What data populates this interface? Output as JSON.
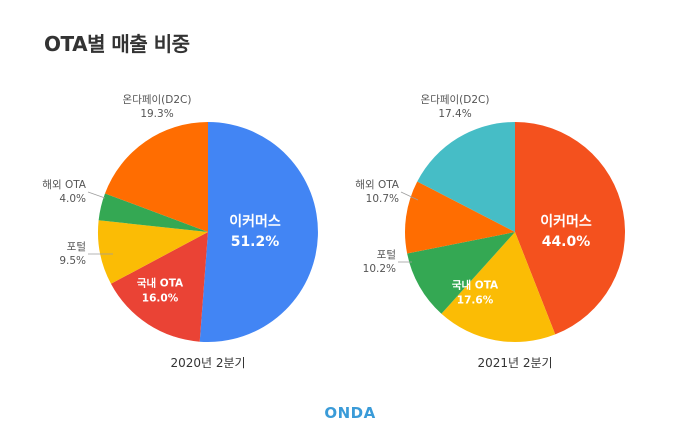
{
  "title": "OTA별 매출 비중",
  "logo": "ONDA",
  "colors": {
    "이커머스_2020": "#4285f4",
    "이커머스_2021": "#f4511e",
    "국내 OTA": "#ea4335",
    "국내 OTA_2021": "#fbbc05",
    "포털": "#fbbc05",
    "포털_2021": "#34a853",
    "해외 OTA": "#34a853",
    "해외 OTA_2021": "#ff6d01",
    "온다페이(D2C)": "#ff6d01",
    "온다페이(D2C)_2021": "#46bdc6"
  },
  "chart_data": [
    {
      "type": "pie",
      "caption": "2020년 2분기",
      "slices": [
        {
          "label": "이커머스",
          "value": 51.2,
          "value_text": "51.2%",
          "color": "#4285f4",
          "label_pos": "inside-big"
        },
        {
          "label": "국내 OTA",
          "value": 16.0,
          "value_text": "16.0%",
          "color": "#ea4335",
          "label_pos": "inside-small"
        },
        {
          "label": "포털",
          "value": 9.5,
          "value_text": "9.5%",
          "color": "#fbbc05",
          "label_pos": "outside"
        },
        {
          "label": "해외 OTA",
          "value": 4.0,
          "value_text": "4.0%",
          "color": "#34a853",
          "label_pos": "outside"
        },
        {
          "label": "온다페이(D2C)",
          "value": 19.3,
          "value_text": "19.3%",
          "color": "#ff6d01",
          "label_pos": "outside"
        }
      ]
    },
    {
      "type": "pie",
      "caption": "2021년 2분기",
      "slices": [
        {
          "label": "이커머스",
          "value": 44.0,
          "value_text": "44.0%",
          "color": "#f4511e",
          "label_pos": "inside-big"
        },
        {
          "label": "국내 OTA",
          "value": 17.6,
          "value_text": "17.6%",
          "color": "#fbbc05",
          "label_pos": "inside-small"
        },
        {
          "label": "포털",
          "value": 10.2,
          "value_text": "10.2%",
          "color": "#34a853",
          "label_pos": "outside"
        },
        {
          "label": "해외 OTA",
          "value": 10.7,
          "value_text": "10.7%",
          "color": "#ff6d01",
          "label_pos": "outside"
        },
        {
          "label": "온다페이(D2C)",
          "value": 17.4,
          "value_text": "17.4%",
          "color": "#46bdc6",
          "label_pos": "outside"
        }
      ]
    }
  ]
}
